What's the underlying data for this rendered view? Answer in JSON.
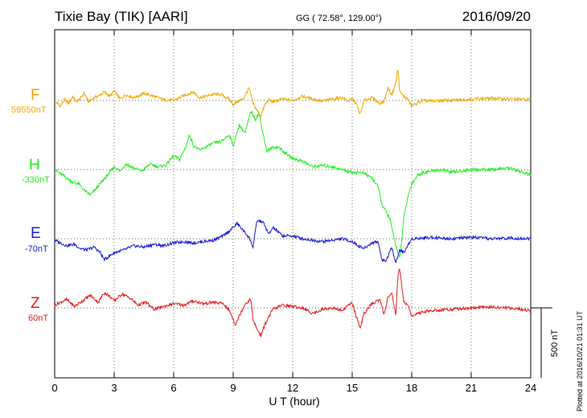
{
  "header": {
    "station": "Tixie Bay (TIK)  [AARI]",
    "coords": "GG ( 72.58°, 129.00°)",
    "date": "2016/09/20"
  },
  "scale_label": "500 nT",
  "plotted_note": "Plotted at 2016/10/21 01:31  UT",
  "chart_data": {
    "type": "line",
    "xlabel": "U T (hour)",
    "xlim": [
      0,
      24
    ],
    "xticks": [
      0,
      3,
      6,
      9,
      12,
      15,
      18,
      21,
      24
    ],
    "scale_nT": 500,
    "grid": true,
    "series": [
      {
        "name": "F",
        "baseline_label": "59550nT",
        "color": "#f0a800",
        "x": [
          0,
          0.3,
          0.5,
          0.7,
          0.9,
          1.1,
          1.3,
          1.5,
          1.7,
          2.0,
          2.3,
          2.5,
          2.8,
          3.0,
          3.3,
          3.6,
          4.0,
          4.5,
          5.0,
          5.5,
          6.0,
          6.3,
          6.6,
          7.0,
          7.3,
          7.6,
          8.0,
          8.4,
          8.8,
          9.0,
          9.2,
          9.5,
          9.8,
          10.0,
          10.2,
          10.4,
          10.6,
          10.8,
          11.0,
          11.5,
          12.0,
          12.5,
          13.0,
          13.5,
          14.0,
          14.5,
          14.8,
          15.0,
          15.2,
          15.4,
          15.6,
          16.0,
          16.4,
          16.6,
          16.8,
          17.0,
          17.2,
          17.3,
          17.4,
          17.6,
          17.8,
          18.0,
          18.5,
          19.0,
          19.5,
          20.0,
          21.0,
          22.0,
          23.0,
          24.0
        ],
        "y": [
          -5,
          -40,
          10,
          -20,
          30,
          -10,
          15,
          55,
          -10,
          20,
          40,
          60,
          30,
          70,
          10,
          40,
          20,
          50,
          30,
          5,
          0,
          20,
          40,
          60,
          20,
          30,
          45,
          40,
          10,
          -30,
          -10,
          10,
          90,
          -20,
          -70,
          -110,
          -30,
          5,
          -10,
          10,
          0,
          30,
          10,
          -5,
          10,
          20,
          -5,
          10,
          -20,
          -100,
          0,
          20,
          -20,
          -10,
          90,
          40,
          130,
          230,
          60,
          30,
          10,
          -40,
          0,
          -5,
          0,
          0,
          10,
          15,
          10,
          5
        ]
      },
      {
        "name": "H",
        "baseline_label": "-330nT",
        "color": "#22ee22",
        "x": [
          0,
          0.3,
          0.6,
          0.9,
          1.2,
          1.5,
          1.8,
          2.0,
          2.3,
          2.6,
          3.0,
          3.3,
          3.6,
          4.0,
          4.4,
          4.8,
          5.2,
          5.6,
          6.0,
          6.3,
          6.6,
          6.8,
          7.0,
          7.3,
          7.6,
          8.0,
          8.4,
          8.8,
          9.0,
          9.3,
          9.6,
          9.9,
          10.1,
          10.3,
          10.5,
          10.7,
          11.0,
          11.3,
          11.6,
          12.0,
          12.5,
          13.0,
          13.5,
          14.0,
          14.5,
          15.0,
          15.5,
          16.0,
          16.3,
          16.5,
          16.7,
          16.9,
          17.0,
          17.2,
          17.4,
          17.6,
          17.8,
          18.0,
          18.3,
          18.6,
          19.0,
          19.5,
          20.0,
          21.0,
          22.0,
          23.0,
          24.0
        ],
        "y": [
          0,
          -30,
          -60,
          -90,
          -100,
          -150,
          -180,
          -150,
          -100,
          -50,
          20,
          -10,
          40,
          10,
          -10,
          40,
          20,
          30,
          100,
          70,
          160,
          250,
          170,
          140,
          160,
          190,
          200,
          250,
          170,
          320,
          260,
          420,
          360,
          400,
          260,
          130,
          160,
          160,
          120,
          80,
          60,
          20,
          30,
          20,
          0,
          -20,
          -20,
          -60,
          -120,
          -250,
          -300,
          -350,
          -420,
          -540,
          -640,
          -350,
          -200,
          -100,
          -40,
          -20,
          -10,
          0,
          -20,
          0,
          0,
          10,
          -40
        ]
      },
      {
        "name": "E",
        "baseline_label": "-70nT",
        "color": "#1a1ad8",
        "x": [
          0,
          0.3,
          0.6,
          1.0,
          1.3,
          1.6,
          2.0,
          2.3,
          2.5,
          2.8,
          3.0,
          3.5,
          4.0,
          4.5,
          5.0,
          5.5,
          6.0,
          6.5,
          7.0,
          7.5,
          8.0,
          8.5,
          9.0,
          9.2,
          9.5,
          9.8,
          10.0,
          10.2,
          10.5,
          10.8,
          11.0,
          11.5,
          12.0,
          12.5,
          13.0,
          13.5,
          14.0,
          14.5,
          15.0,
          15.3,
          15.6,
          16.0,
          16.3,
          16.5,
          16.7,
          17.0,
          17.2,
          17.4,
          17.6,
          17.8,
          18.0,
          19.0,
          20.0,
          21.0,
          22.0,
          23.0,
          24.0
        ],
        "y": [
          -10,
          -30,
          -50,
          -40,
          -70,
          -80,
          -60,
          -100,
          -150,
          -120,
          -100,
          -80,
          -50,
          -60,
          -40,
          -50,
          -30,
          -20,
          -30,
          -20,
          -10,
          20,
          80,
          110,
          60,
          10,
          -60,
          130,
          120,
          30,
          80,
          20,
          20,
          0,
          -10,
          -20,
          -10,
          0,
          -20,
          -50,
          -70,
          -30,
          -20,
          -150,
          -160,
          -60,
          -170,
          -80,
          -100,
          -50,
          0,
          10,
          0,
          10,
          0,
          5,
          0
        ]
      },
      {
        "name": "Z",
        "baseline_label": "60nT",
        "color": "#e61c1c",
        "x": [
          0,
          0.3,
          0.6,
          1.0,
          1.4,
          1.8,
          2.2,
          2.5,
          2.8,
          3.0,
          3.4,
          3.8,
          4.2,
          4.6,
          5.0,
          5.5,
          6.0,
          6.5,
          7.0,
          7.5,
          8.0,
          8.5,
          8.8,
          9.0,
          9.1,
          9.3,
          9.6,
          9.9,
          10.0,
          10.2,
          10.4,
          10.6,
          11.0,
          11.5,
          12.0,
          12.5,
          13.0,
          13.5,
          14.0,
          14.5,
          15.0,
          15.2,
          15.4,
          15.6,
          16.0,
          16.4,
          16.6,
          16.8,
          17.0,
          17.2,
          17.3,
          17.4,
          17.6,
          17.8,
          18.0,
          18.5,
          19.0,
          20.0,
          21.0,
          22.0,
          23.0,
          24.0
        ],
        "y": [
          20,
          40,
          60,
          10,
          50,
          90,
          40,
          110,
          80,
          50,
          100,
          70,
          20,
          40,
          -10,
          10,
          30,
          20,
          50,
          30,
          40,
          30,
          -20,
          -80,
          -120,
          -60,
          30,
          60,
          -90,
          -150,
          -200,
          -120,
          -10,
          20,
          10,
          0,
          -40,
          -10,
          0,
          -20,
          40,
          -60,
          -140,
          -40,
          30,
          60,
          -50,
          80,
          100,
          -60,
          230,
          280,
          40,
          30,
          -60,
          -30,
          -20,
          -10,
          0,
          5,
          0,
          -20
        ]
      }
    ]
  }
}
